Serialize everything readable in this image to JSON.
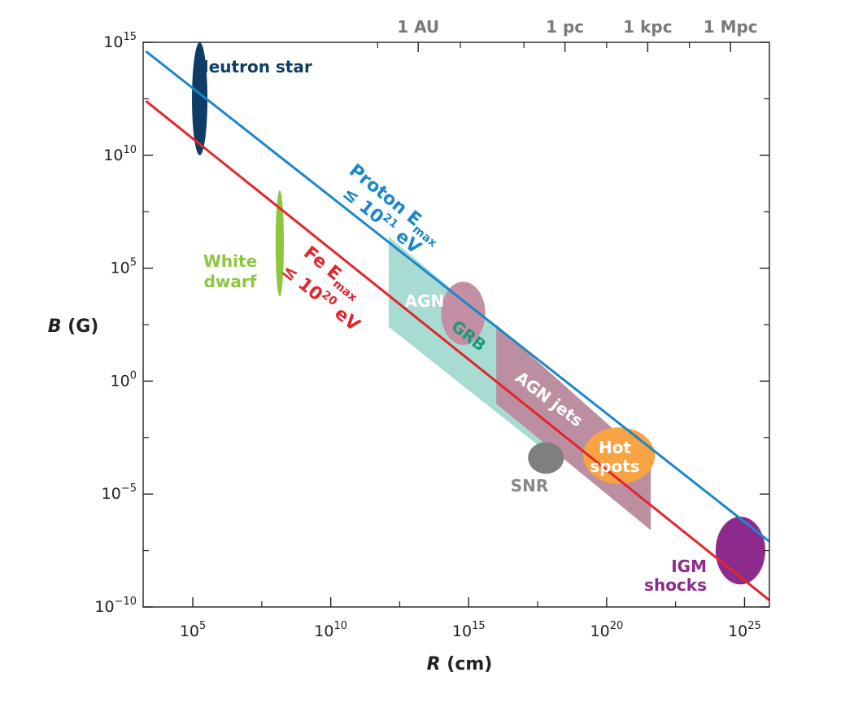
{
  "chart_data": {
    "type": "scatter",
    "title": "",
    "xlabel": {
      "var": "R",
      "unit": "(cm)"
    },
    "ylabel": {
      "var": "B",
      "unit": "(G)"
    },
    "x_scale": "log10",
    "y_scale": "log10",
    "xlim_log10": [
      3.2,
      25.9
    ],
    "ylim_log10": [
      -10,
      15
    ],
    "x_ticks": [
      {
        "base": "10",
        "exp": "5",
        "value_log10": 5
      },
      {
        "base": "10",
        "exp": "10",
        "value_log10": 10
      },
      {
        "base": "10",
        "exp": "15",
        "value_log10": 15
      },
      {
        "base": "10",
        "exp": "20",
        "value_log10": 20
      },
      {
        "base": "10",
        "exp": "25",
        "value_log10": 25
      }
    ],
    "y_ticks": [
      {
        "base": "10",
        "exp": "15",
        "value_log10": 15
      },
      {
        "base": "10",
        "exp": "10",
        "value_log10": 10
      },
      {
        "base": "10",
        "exp": "5",
        "value_log10": 5
      },
      {
        "base": "10",
        "exp": "0",
        "value_log10": 0
      },
      {
        "base": "10",
        "exp": "−5",
        "value_log10": -5
      },
      {
        "base": "10",
        "exp": "−10",
        "value_log10": -10
      }
    ],
    "top_axis_ticks": [
      {
        "label": "1 AU",
        "value_log10": 13.17
      },
      {
        "label": "1 pc",
        "value_log10": 18.49
      },
      {
        "label": "1 kpc",
        "value_log10": 21.49
      },
      {
        "label": "1 Mpc",
        "value_log10": 24.49
      }
    ],
    "lines": [
      {
        "id": "proton",
        "color": "#1b87c9",
        "label_main": "Proton E",
        "label_sub": "max",
        "label_line2_prefix": "≤ 10",
        "label_line2_exp": "21",
        "label_line2_suffix": " eV",
        "points_log10": [
          [
            3.3,
            14.6
          ],
          [
            25.9,
            -7.1
          ]
        ]
      },
      {
        "id": "iron",
        "color": "#e1262d",
        "label_main": "Fe E",
        "label_sub": "max",
        "label_line2_prefix": "≤ 10",
        "label_line2_exp": "20",
        "label_line2_suffix": " eV",
        "points_log10": [
          [
            3.3,
            12.4
          ],
          [
            25.9,
            -9.7
          ]
        ]
      }
    ],
    "regions": [
      {
        "id": "grb",
        "label": "GRB",
        "label_color": "#1a9a7b",
        "color": "#a8dcd2",
        "polygon_log10": [
          [
            12.1,
            6.4
          ],
          [
            15.9,
            2.5
          ],
          [
            18.3,
            -3.1
          ],
          [
            18.3,
            -3.6
          ],
          [
            12.1,
            2.4
          ]
        ]
      },
      {
        "id": "agn-jets",
        "label": "AGN jets",
        "label_color": "#ffffff",
        "color": "#bc8ea2",
        "polygon_log10": [
          [
            16.0,
            2.5
          ],
          [
            21.6,
            -3.6
          ],
          [
            21.6,
            -6.6
          ],
          [
            16.0,
            -1.0
          ]
        ]
      }
    ],
    "blobs": [
      {
        "id": "neutron-star",
        "label": "Neutron star",
        "label_color": "#0e3c66",
        "color": "#0e3c66",
        "cx_log10": 5.25,
        "cy_log10": 12.5,
        "rx_dex": 0.28,
        "ry_dex": 2.5
      },
      {
        "id": "white-dwarf",
        "label_line1": "White",
        "label_line2": "dwarf",
        "label_color": "#8cc63f",
        "color": "#8cc63f",
        "cx_log10": 8.15,
        "cy_log10": 6.1,
        "rx_dex": 0.15,
        "ry_dex": 2.35
      },
      {
        "id": "agn",
        "label": "AGN",
        "label_color": "#ffffff",
        "color": "#c48ea4",
        "cx_log10": 14.8,
        "cy_log10": 3.0,
        "rx_dex": 0.8,
        "ry_dex": 1.4
      },
      {
        "id": "snr",
        "label": "SNR",
        "label_color": "#888888",
        "color": "#7f7f80",
        "cx_log10": 17.8,
        "cy_log10": -3.4,
        "rx_dex": 0.65,
        "ry_dex": 0.7
      },
      {
        "id": "hot-spots",
        "label_line1": "Hot",
        "label_line2": "spots",
        "label_color": "#ffffff",
        "color": "#f9a342",
        "cx_log10": 20.45,
        "cy_log10": -3.3,
        "rx_dex": 1.3,
        "ry_dex": 1.25
      },
      {
        "id": "igm-shocks",
        "label_line1": "IGM",
        "label_line2": "shocks",
        "label_color": "#8e2a8c",
        "color": "#8e2a8c",
        "cx_log10": 24.85,
        "cy_log10": -7.5,
        "rx_dex": 0.9,
        "ry_dex": 1.5
      }
    ]
  }
}
